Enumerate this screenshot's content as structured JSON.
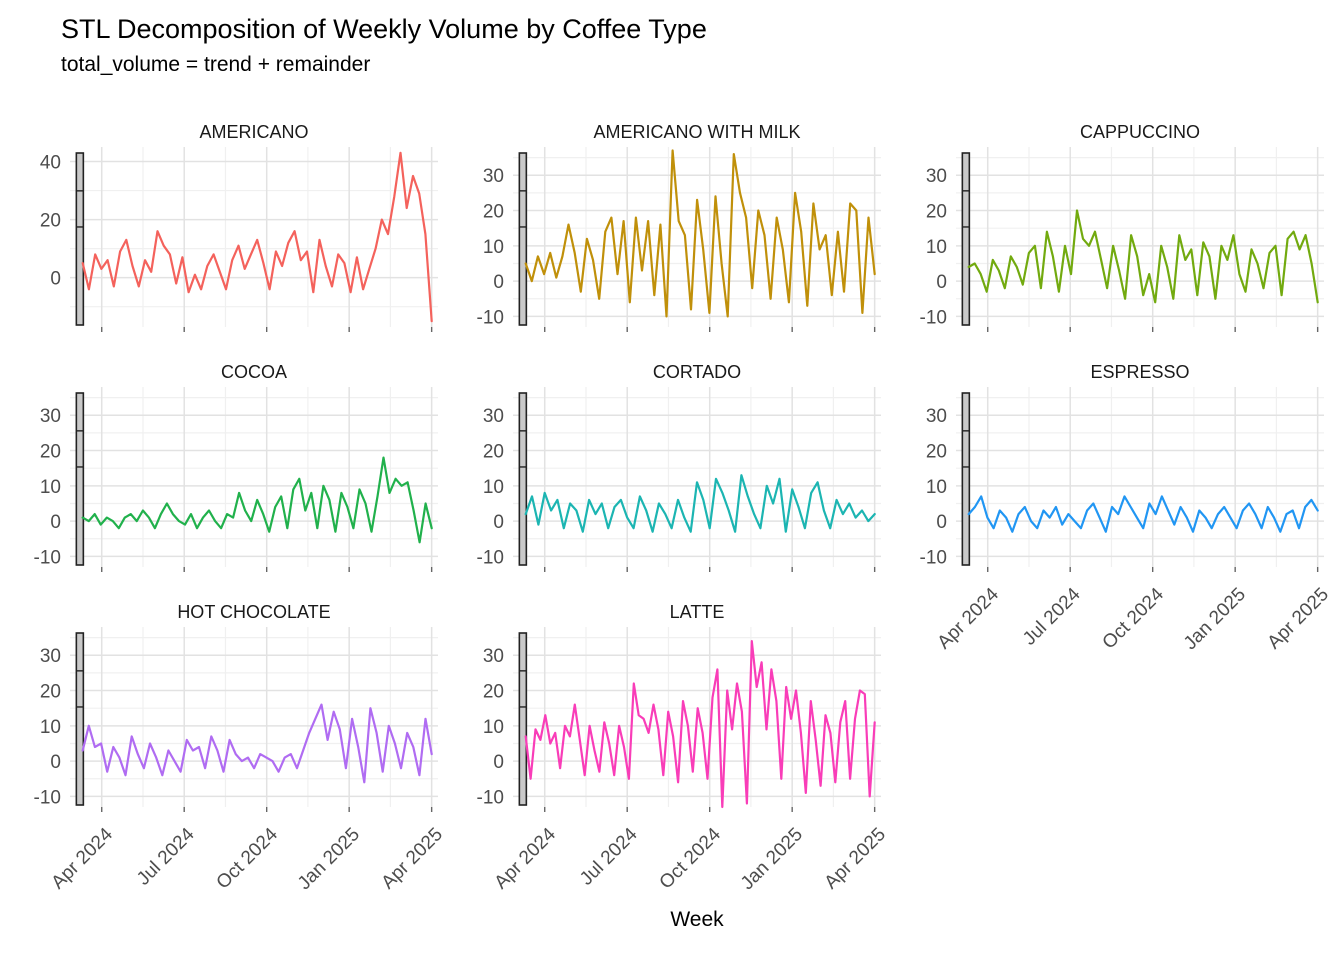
{
  "header": {
    "title": "STL Decomposition of Weekly Volume by Coffee Type",
    "subtitle": "total_volume = trend + remainder"
  },
  "chart_data": {
    "type": "line",
    "layout": "faceted small multiples, 3 columns x 3 rows (8 panels), ggplot-style STL remainder plot",
    "title": "STL Decomposition of Weekly Volume by Coffee Type",
    "subtitle": "total_volume = trend + remainder",
    "xlabel": "Week",
    "ylabel": "",
    "grid": "major and minor light-gray gridlines on white background",
    "range_bar": "gray scale bar with two notches at left inside each panel",
    "x_domain_weeks": [
      0,
      58
    ],
    "x_tick_week_positions": [
      5,
      18,
      31,
      44,
      57
    ],
    "x_tick_labels": [
      "Apr 2024",
      "Jul 2024",
      "Oct 2024",
      "Jan 2025",
      "Apr 2025"
    ],
    "x_minor_week_positions": [
      11.5,
      24.5,
      37.5,
      50.5
    ],
    "facets": [
      {
        "label": "AMERICANO",
        "color": "#F4625C",
        "ylim": [
          -17,
          45
        ],
        "yticks": [
          0,
          20,
          40
        ],
        "yminor": [
          -10,
          10,
          30
        ],
        "values": [
          5,
          -4,
          8,
          3,
          6,
          -3,
          9,
          13,
          4,
          -3,
          6,
          2,
          16,
          11,
          8,
          -2,
          7,
          -5,
          1,
          -4,
          4,
          8,
          2,
          -4,
          6,
          11,
          3,
          8,
          13,
          5,
          -4,
          9,
          4,
          12,
          16,
          6,
          9,
          -5,
          13,
          4,
          -3,
          8,
          5,
          -5,
          7,
          -4,
          3,
          10,
          20,
          15,
          28,
          43,
          24,
          35,
          29,
          15,
          -15
        ]
      },
      {
        "label": "AMERICANO WITH MILK",
        "color": "#C0900A",
        "ylim": [
          -13,
          38
        ],
        "yticks": [
          -10,
          0,
          10,
          20,
          30
        ],
        "yminor": [
          -5,
          5,
          15,
          25,
          35
        ],
        "values": [
          5,
          0,
          7,
          2,
          8,
          1,
          7,
          16,
          8,
          -3,
          12,
          6,
          -5,
          14,
          18,
          2,
          17,
          -6,
          18,
          3,
          17,
          -4,
          16,
          -10,
          37,
          17,
          13,
          -8,
          23,
          9,
          -9,
          24,
          5,
          -10,
          36,
          25,
          18,
          -2,
          20,
          13,
          -5,
          18,
          9,
          -6,
          25,
          14,
          -7,
          22,
          9,
          13,
          -4,
          14,
          -3,
          22,
          20,
          -9,
          18,
          2
        ]
      },
      {
        "label": "CAPPUCCINO",
        "color": "#72AA0F",
        "ylim": [
          -13,
          38
        ],
        "yticks": [
          -10,
          0,
          10,
          20,
          30
        ],
        "yminor": [
          -5,
          5,
          15,
          25,
          35
        ],
        "values": [
          4,
          5,
          2,
          -3,
          6,
          3,
          -2,
          7,
          4,
          -1,
          8,
          10,
          -2,
          14,
          7,
          -3,
          10,
          2,
          20,
          12,
          10,
          14,
          6,
          -2,
          10,
          3,
          -5,
          13,
          7,
          -4,
          2,
          -6,
          10,
          4,
          -5,
          13,
          6,
          9,
          -4,
          11,
          7,
          -5,
          10,
          6,
          13,
          2,
          -3,
          9,
          5,
          -2,
          8,
          10,
          -4,
          12,
          14,
          9,
          13,
          5,
          -6
        ]
      },
      {
        "label": "COCOA",
        "color": "#21B14C",
        "ylim": [
          -13,
          38
        ],
        "yticks": [
          -10,
          0,
          10,
          20,
          30
        ],
        "yminor": [
          -5,
          5,
          15,
          25,
          35
        ],
        "values": [
          1,
          0,
          2,
          -1,
          1,
          0,
          -2,
          1,
          2,
          0,
          3,
          1,
          -2,
          2,
          5,
          2,
          0,
          -1,
          2,
          -2,
          1,
          3,
          0,
          -2,
          2,
          1,
          8,
          3,
          0,
          6,
          2,
          -3,
          4,
          7,
          -2,
          9,
          12,
          3,
          8,
          -2,
          10,
          6,
          -3,
          8,
          4,
          -2,
          9,
          5,
          -3,
          7,
          18,
          8,
          12,
          10,
          11,
          3,
          -6,
          5,
          -2
        ]
      },
      {
        "label": "CORTADO",
        "color": "#1CB5B2",
        "ylim": [
          -13,
          38
        ],
        "yticks": [
          -10,
          0,
          10,
          20,
          30
        ],
        "yminor": [
          -5,
          5,
          15,
          25,
          35
        ],
        "values": [
          2,
          7,
          -1,
          8,
          3,
          6,
          -2,
          5,
          3,
          -3,
          6,
          2,
          5,
          -2,
          4,
          6,
          1,
          -2,
          7,
          3,
          -3,
          5,
          2,
          -2,
          6,
          1,
          -3,
          11,
          6,
          -2,
          12,
          8,
          3,
          -3,
          13,
          7,
          2,
          -2,
          10,
          5,
          12,
          -3,
          9,
          4,
          -2,
          8,
          11,
          3,
          -2,
          6,
          2,
          5,
          1,
          3,
          0,
          2
        ]
      },
      {
        "label": "ESPRESSO",
        "color": "#2196F3",
        "ylim": [
          -13,
          38
        ],
        "yticks": [
          -10,
          0,
          10,
          20,
          30
        ],
        "yminor": [
          -5,
          5,
          15,
          25,
          35
        ],
        "values": [
          2,
          4,
          7,
          1,
          -2,
          3,
          1,
          -3,
          2,
          4,
          0,
          -2,
          3,
          1,
          4,
          -1,
          2,
          0,
          -2,
          3,
          5,
          1,
          -3,
          4,
          2,
          7,
          4,
          1,
          -2,
          5,
          2,
          7,
          3,
          -1,
          4,
          1,
          -3,
          3,
          1,
          -2,
          2,
          4,
          1,
          -2,
          3,
          5,
          2,
          -2,
          4,
          1,
          -3,
          2,
          3,
          -2,
          4,
          6,
          3
        ]
      },
      {
        "label": "HOT CHOCOLATE",
        "color": "#B06CF2",
        "ylim": [
          -13,
          38
        ],
        "yticks": [
          -10,
          0,
          10,
          20,
          30
        ],
        "yminor": [
          -5,
          5,
          15,
          25,
          35
        ],
        "values": [
          3,
          10,
          4,
          5,
          -3,
          4,
          1,
          -4,
          7,
          2,
          -2,
          5,
          1,
          -4,
          3,
          0,
          -3,
          6,
          3,
          4,
          -2,
          7,
          3,
          -3,
          6,
          2,
          0,
          1,
          -2,
          2,
          1,
          0,
          -3,
          1,
          2,
          -2,
          3,
          8,
          12,
          16,
          6,
          14,
          9,
          -2,
          12,
          4,
          -6,
          15,
          8,
          -3,
          10,
          5,
          -2,
          8,
          4,
          -4,
          12,
          2
        ]
      },
      {
        "label": "LATTE",
        "color": "#F93DB8",
        "ylim": [
          -13,
          38
        ],
        "yticks": [
          -10,
          0,
          10,
          20,
          30
        ],
        "yminor": [
          -5,
          5,
          15,
          25,
          35
        ],
        "values": [
          7,
          -5,
          9,
          6,
          13,
          5,
          8,
          -2,
          10,
          7,
          16,
          6,
          -4,
          10,
          3,
          -3,
          11,
          5,
          -4,
          10,
          4,
          -5,
          22,
          13,
          12,
          8,
          16,
          9,
          -4,
          14,
          7,
          -6,
          17,
          10,
          -3,
          15,
          8,
          -5,
          18,
          26,
          -13,
          20,
          9,
          22,
          14,
          -12,
          34,
          21,
          28,
          9,
          26,
          17,
          -5,
          21,
          12,
          20,
          8,
          -9,
          17,
          6,
          -7,
          13,
          8,
          -6,
          11,
          17,
          -5,
          12,
          20,
          19,
          -10,
          11
        ]
      }
    ],
    "facet_grid_positions": {
      "row1": [
        "AMERICANO",
        "AMERICANO WITH MILK",
        "CAPPUCCINO"
      ],
      "row2": [
        "COCOA",
        "CORTADO",
        "ESPRESSO"
      ],
      "row3": [
        "HOT CHOCOLATE",
        "LATTE",
        null
      ]
    },
    "bottom_axis_facets": [
      "HOT CHOCOLATE",
      "LATTE",
      "ESPRESSO"
    ]
  },
  "style": {
    "grid_major_color": "#E2E2E2",
    "grid_minor_color": "#F0F0F0",
    "axis_text_color": "#4D4D4D",
    "range_bar_fill": "#C9C9C9",
    "range_bar_stroke": "#222222",
    "line_width": 2.2
  }
}
